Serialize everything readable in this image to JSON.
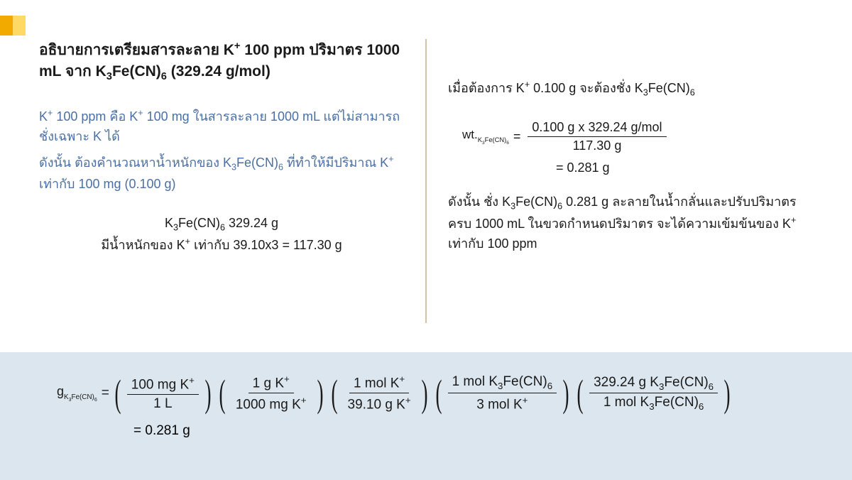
{
  "accent": {
    "color1": "#f2a900",
    "color2": "#ffd966"
  },
  "left": {
    "title_html": "อธิบายการเตรียมสารละลาย K<sup>+</sup> 100 ppm ปริมาตร 1000 mL จาก K<sub>3</sub>Fe(CN)<sub>6</sub> (329.24 g/mol)",
    "blue1_html": "K<sup>+</sup> 100 ppm คือ K<sup>+</sup> 100 mg ในสารละลาย 1000 mL แต่ไม่สามารถชั่งเฉพาะ K ได้",
    "blue2_html": "ดังนั้น ต้องคำนวณหาน้ำหนักของ K<sub>3</sub>Fe(CN)<sub>6</sub> ที่ทำให้มีปริมาณ K<sup>+</sup> เท่ากับ 100 mg (0.100 g)",
    "center1_html": "K<sub>3</sub>Fe(CN)<sub>6</sub> 329.24 g",
    "center2_html": "มีน้ำหนักของ K<sup>+</sup> เท่ากับ 39.10x3 = 117.30 g"
  },
  "right": {
    "line1_html": "เมื่อต้องการ K<sup>+</sup> 0.100 g จะต้องชั่ง K<sub>3</sub>Fe(CN)<sub>6</sub>",
    "eq_lhs_html": "wt.<sub class=\"sub2\">K<sub>3</sub>Fe(CN)<sub>6</sub></sub>",
    "eq_num": "0.100 g x 329.24 g/mol",
    "eq_den": "117.30 g",
    "eq_result": "= 0.281 g",
    "concl_html": "ดังนั้น ชั่ง K<sub>3</sub>Fe(CN)<sub>6</sub> 0.281 g ละลายในน้ำกลั่นและปรับปริมาตรครบ 1000 mL ในขวดกำหนดปริมาตร จะได้ความเข้มข้นของ K<sup>+</sup> เท่ากับ 100 ppm"
  },
  "bottom": {
    "lhs_html": "g<sub class=\"sub2\">K<sub>3</sub>Fe(CN)<sub>6</sub></sub>",
    "factors": [
      {
        "num_html": "100 mg K<sup>+</sup>",
        "den_html": "1 L"
      },
      {
        "num_html": "1 g K<sup>+</sup>",
        "den_html": "1000 mg K<sup>+</sup>"
      },
      {
        "num_html": "1 mol K<sup>+</sup>",
        "den_html": "39.10 g K<sup>+</sup>"
      },
      {
        "num_html": "1 mol K<sub>3</sub>Fe(CN)<sub>6</sub>",
        "den_html": "3 mol K<sup>+</sup>"
      },
      {
        "num_html": "329.24 g K<sub>3</sub>Fe(CN)<sub>6</sub>",
        "den_html": "1 mol K<sub>3</sub>Fe(CN)<sub>6</sub>"
      }
    ],
    "result": "= 0.281 g",
    "bg_color": "#dce6ee"
  }
}
